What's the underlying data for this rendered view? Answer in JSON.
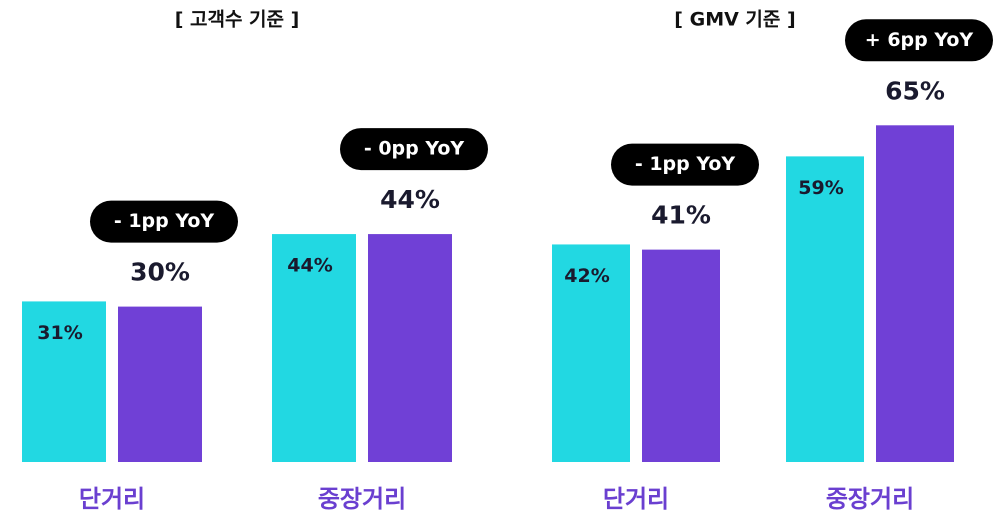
{
  "chart_data": [
    {
      "type": "bar",
      "title": "[ 고객수 기준 ]",
      "categories": [
        "단거리",
        "중장거리"
      ],
      "series": [
        {
          "color": "#22d8e2",
          "values": [
            31,
            44
          ],
          "value_labels": [
            "31%",
            "44%"
          ]
        },
        {
          "color": "#7040d6",
          "values": [
            30,
            44
          ],
          "value_labels": [
            "30%",
            "44%"
          ]
        }
      ],
      "annotations": [
        "- 1pp YoY",
        "- 0pp YoY"
      ]
    },
    {
      "type": "bar",
      "title": "[ GMV 기준 ]",
      "categories": [
        "단거리",
        "중장거리"
      ],
      "series": [
        {
          "color": "#22d8e2",
          "values": [
            42,
            59
          ],
          "value_labels": [
            "42%",
            "59%"
          ]
        },
        {
          "color": "#7040d6",
          "values": [
            41,
            65
          ],
          "value_labels": [
            "41%",
            "65%"
          ]
        }
      ],
      "annotations": [
        "- 1pp YoY",
        "+ 6pp YoY"
      ]
    }
  ]
}
